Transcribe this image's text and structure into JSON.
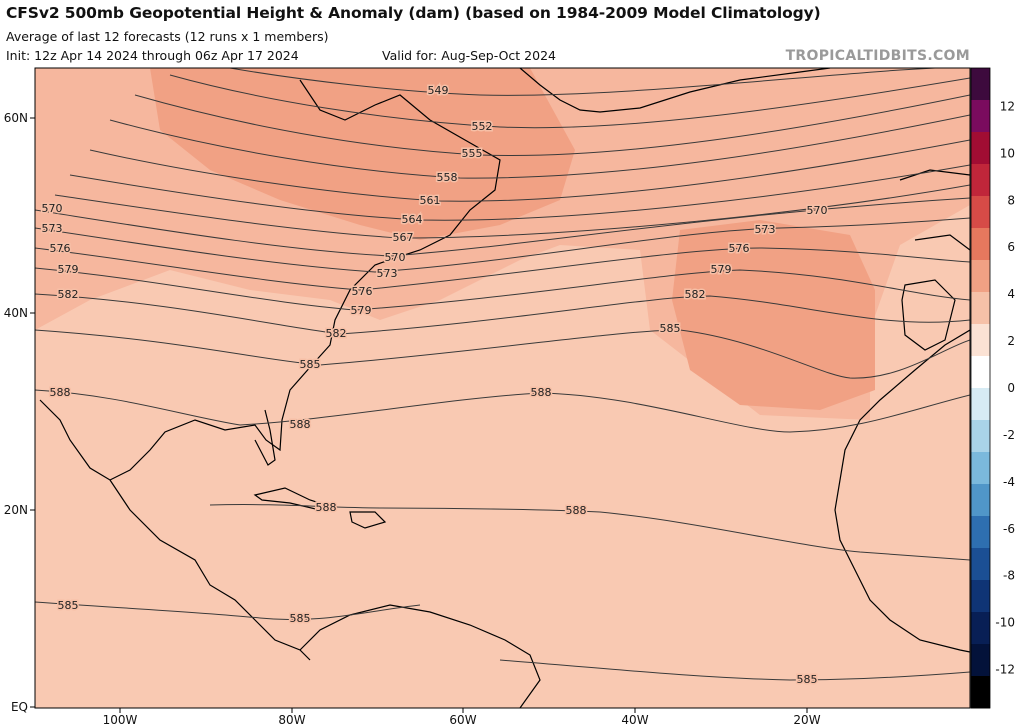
{
  "header": {
    "title": "CFSv2 500mb Geopotential Height & Anomaly (dam) (based on 1984-2009 Model Climatology)",
    "subtitle": "Average of last 12 forecasts (12 runs x 1 members)",
    "init": "Init: 12z Apr 14 2024 through 06z Apr 17 2024",
    "valid": "Valid for: Aug-Sep-Oct 2024",
    "brand": "TROPICALTIDBITS.COM"
  },
  "map": {
    "lat_labels": [
      "60N",
      "40N",
      "20N",
      "EQ"
    ],
    "lon_labels": [
      "100W",
      "80W",
      "60W",
      "40W",
      "20W"
    ],
    "colors": {
      "anom_1": "#f9c9b2",
      "anom_2": "#f6b79e",
      "anom_3": "#f1a184",
      "land_border": "#000000",
      "contour": "#333333"
    },
    "contours": [
      {
        "value": "549",
        "labels": [
          {
            "label": "549"
          }
        ]
      },
      {
        "value": "552",
        "labels": [
          {
            "label": "552"
          }
        ]
      },
      {
        "value": "555",
        "labels": [
          {
            "label": "555"
          }
        ]
      },
      {
        "value": "558",
        "labels": [
          {
            "label": "558"
          }
        ]
      },
      {
        "value": "561",
        "labels": [
          {
            "label": "561"
          }
        ]
      },
      {
        "value": "564",
        "labels": [
          {
            "label": "564"
          }
        ]
      },
      {
        "value": "567",
        "labels": [
          {
            "label": "567"
          }
        ]
      },
      {
        "value": "570",
        "labels": [
          {
            "label": "570"
          },
          {
            "label": "570"
          },
          {
            "label": "570"
          }
        ]
      },
      {
        "value": "573",
        "labels": [
          {
            "label": "573"
          },
          {
            "label": "573"
          },
          {
            "label": "573"
          }
        ]
      },
      {
        "value": "576",
        "labels": [
          {
            "label": "576"
          },
          {
            "label": "576"
          },
          {
            "label": "576"
          }
        ]
      },
      {
        "value": "579",
        "labels": [
          {
            "label": "579"
          },
          {
            "label": "579"
          },
          {
            "label": "579"
          }
        ]
      },
      {
        "value": "582",
        "labels": [
          {
            "label": "582"
          },
          {
            "label": "582"
          },
          {
            "label": "582"
          }
        ]
      },
      {
        "value": "585",
        "labels": [
          {
            "label": "585"
          },
          {
            "label": "585"
          }
        ]
      },
      {
        "value": "588",
        "labels": [
          {
            "label": "588"
          },
          {
            "label": "588"
          },
          {
            "label": "588"
          }
        ]
      },
      {
        "value": "588",
        "labels": [
          {
            "label": "588"
          },
          {
            "label": "588"
          }
        ]
      },
      {
        "value": "585",
        "labels": [
          {
            "label": "585"
          },
          {
            "label": "585"
          }
        ]
      },
      {
        "value": "585",
        "labels": [
          {
            "label": "585"
          }
        ]
      }
    ]
  },
  "colorbar": {
    "ticks": [
      "12",
      "10",
      "8",
      "6",
      "4",
      "2",
      "0",
      "-2",
      "-4",
      "-6",
      "-8",
      "-10",
      "-12"
    ],
    "colors": [
      "#3d0a3d",
      "#7a0b5e",
      "#a10d33",
      "#c0263a",
      "#d64b47",
      "#e6785e",
      "#f1a184",
      "#f6c1a8",
      "#fbe2d4",
      "#ffffff",
      "#d6ebf4",
      "#a9d3e8",
      "#7bb9dc",
      "#5096c8",
      "#2e6fb0",
      "#1b4f94",
      "#0f3475",
      "#081f55",
      "#03123a",
      "#000000"
    ]
  }
}
